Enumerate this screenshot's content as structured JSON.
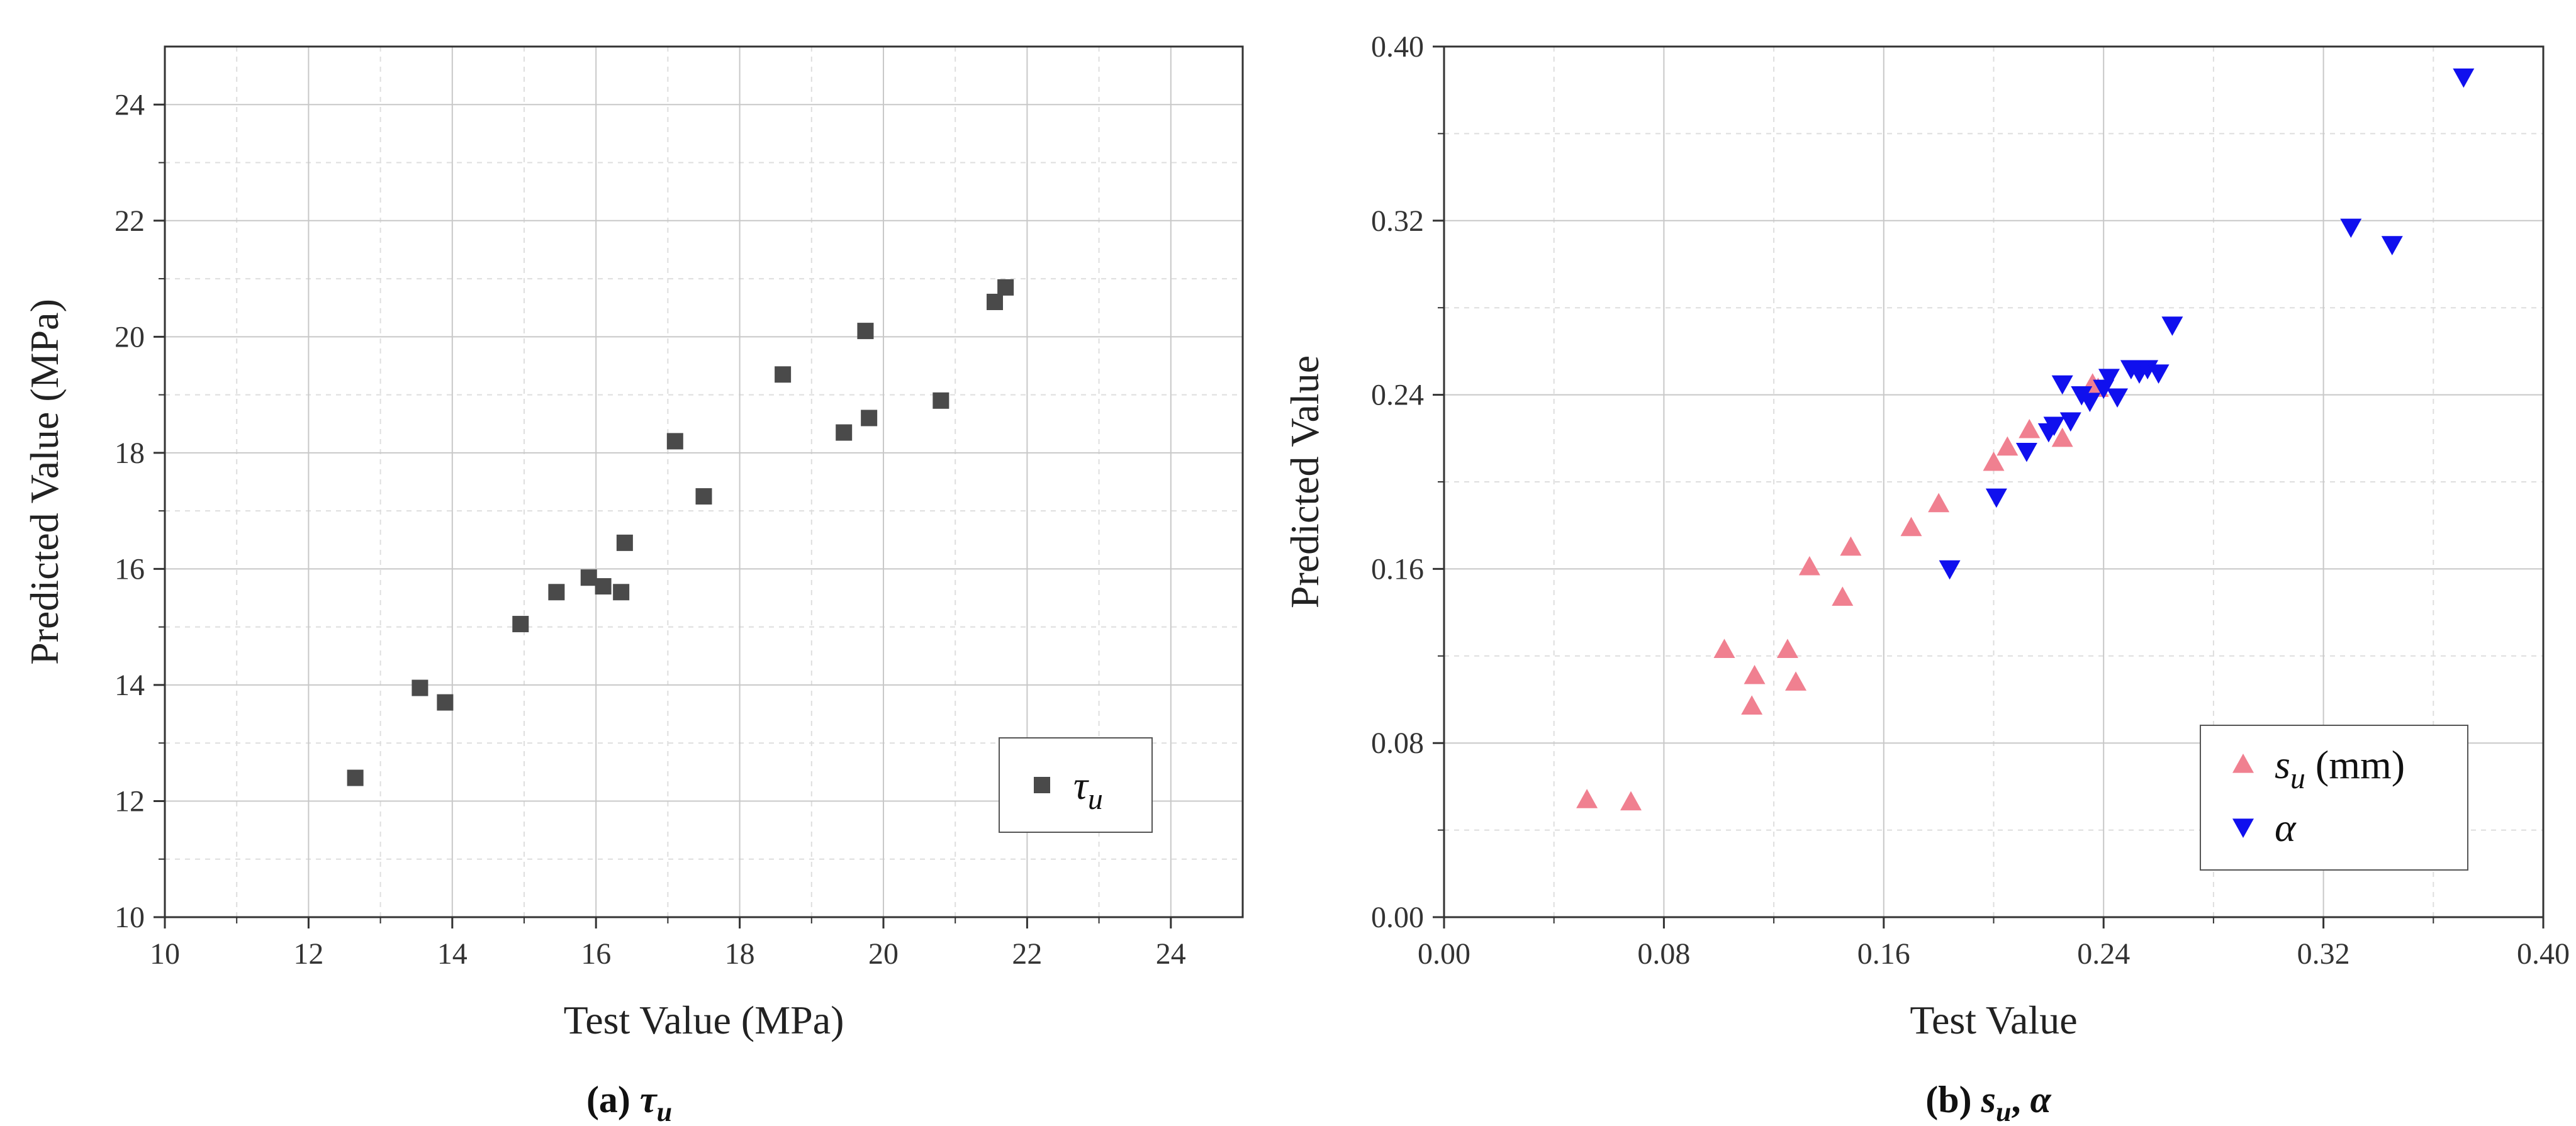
{
  "chart_data": [
    {
      "type": "scatter",
      "title": "",
      "caption": {
        "prefix": "(a) ",
        "symbol": "τ",
        "subscript": "u"
      },
      "xlabel": "Test Value (MPa)",
      "ylabel": "Predicted Value (MPa)",
      "xlim": [
        10,
        25
      ],
      "ylim": [
        10,
        25
      ],
      "xticks": [
        10,
        12,
        14,
        16,
        18,
        20,
        22,
        24
      ],
      "yticks": [
        10,
        12,
        14,
        16,
        18,
        20,
        22,
        24
      ],
      "xtick_labels": [
        "10",
        "12",
        "14",
        "16",
        "18",
        "20",
        "22",
        "24"
      ],
      "ytick_labels": [
        "10",
        "12",
        "14",
        "16",
        "18",
        "20",
        "22",
        "24"
      ],
      "grid": true,
      "legend": {
        "position": "bottom-right"
      },
      "series": [
        {
          "name": "τu",
          "legend_symbol": "τ",
          "legend_subscript": "u",
          "marker": "square",
          "color": "#4a4a4a",
          "x": [
            12.65,
            13.55,
            13.9,
            14.95,
            15.45,
            15.9,
            16.1,
            16.35,
            16.4,
            17.1,
            17.5,
            18.6,
            19.45,
            19.75,
            19.8,
            20.8,
            21.55,
            21.7
          ],
          "y": [
            12.4,
            13.95,
            13.7,
            15.05,
            15.6,
            15.85,
            15.7,
            15.6,
            16.45,
            18.2,
            17.25,
            19.35,
            18.35,
            20.1,
            18.6,
            18.9,
            20.6,
            20.85
          ]
        }
      ]
    },
    {
      "type": "scatter",
      "title": "",
      "caption": {
        "prefix": "(b) ",
        "s_symbol": "s",
        "s_subscript": "u",
        "separator": ", ",
        "alpha_symbol": "α"
      },
      "xlabel": "Test Value",
      "ylabel": "Predicted Value",
      "xlim": [
        0,
        0.4
      ],
      "ylim": [
        0,
        0.4
      ],
      "xticks": [
        0,
        0.08,
        0.16,
        0.24,
        0.32,
        0.4
      ],
      "yticks": [
        0,
        0.08,
        0.16,
        0.24,
        0.32,
        0.4
      ],
      "xtick_labels": [
        "0.00",
        "0.08",
        "0.16",
        "0.24",
        "0.32",
        "0.40"
      ],
      "ytick_labels": [
        "0.00",
        "0.08",
        "0.16",
        "0.24",
        "0.32",
        "0.40"
      ],
      "grid": true,
      "legend": {
        "position": "bottom-right"
      },
      "series": [
        {
          "name": "su (mm)",
          "legend_symbol": "s",
          "legend_subscript": "u",
          "legend_unit": " (mm)",
          "marker": "triangle-up",
          "color": "#f08090",
          "x": [
            0.052,
            0.068,
            0.102,
            0.112,
            0.113,
            0.125,
            0.128,
            0.133,
            0.145,
            0.148,
            0.17,
            0.18,
            0.2,
            0.205,
            0.213,
            0.225,
            0.236,
            0.238
          ],
          "y": [
            0.054,
            0.053,
            0.123,
            0.097,
            0.111,
            0.123,
            0.108,
            0.161,
            0.147,
            0.17,
            0.179,
            0.19,
            0.209,
            0.216,
            0.224,
            0.22,
            0.245,
            0.243
          ]
        },
        {
          "name": "α",
          "legend_symbol": "α",
          "marker": "triangle-down",
          "color": "#1010ee",
          "x": [
            0.184,
            0.201,
            0.212,
            0.22,
            0.222,
            0.225,
            0.228,
            0.232,
            0.235,
            0.24,
            0.242,
            0.245,
            0.25,
            0.253,
            0.256,
            0.26,
            0.265,
            0.33,
            0.345,
            0.371
          ],
          "y": [
            0.16,
            0.193,
            0.214,
            0.223,
            0.226,
            0.245,
            0.228,
            0.24,
            0.237,
            0.243,
            0.248,
            0.239,
            0.252,
            0.25,
            0.252,
            0.25,
            0.272,
            0.317,
            0.309,
            0.386
          ]
        }
      ]
    }
  ]
}
